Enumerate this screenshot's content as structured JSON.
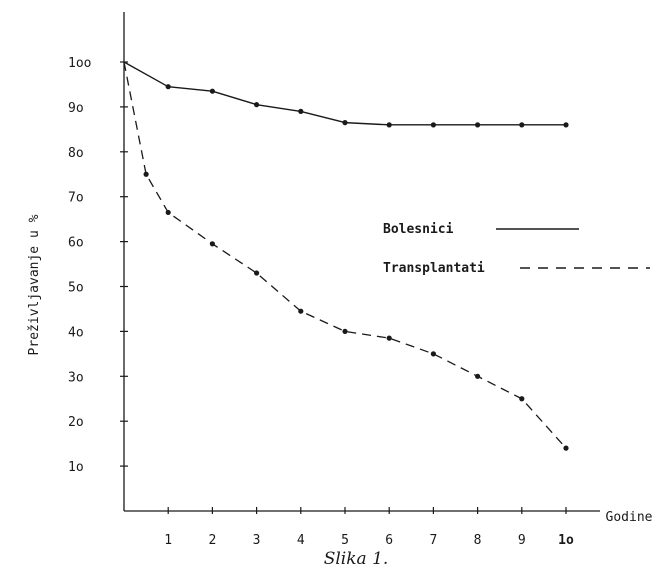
{
  "chart_data": {
    "type": "line",
    "caption": "Slika 1.",
    "xlabel": "Godine",
    "ylabel": "Preživljavanje u %",
    "x_ticks": [
      "1",
      "2",
      "3",
      "4",
      "5",
      "6",
      "7",
      "8",
      "9",
      "1o"
    ],
    "y_ticks": [
      "1o",
      "2o",
      "3o",
      "4o",
      "5o",
      "6o",
      "7o",
      "8o",
      "9o",
      "1oo"
    ],
    "xlim": [
      0,
      10.5
    ],
    "ylim": [
      0,
      106
    ],
    "grid": false,
    "legend_position": "right",
    "series": [
      {
        "name": "Bolesnici",
        "style": "solid",
        "color": "#1a1a1a",
        "points": [
          [
            0,
            100
          ],
          [
            1,
            94.5
          ],
          [
            2,
            93.5
          ],
          [
            3,
            90.5
          ],
          [
            4,
            89
          ],
          [
            5,
            86.5
          ],
          [
            6,
            86
          ],
          [
            7,
            86
          ],
          [
            8,
            86
          ],
          [
            9,
            86
          ],
          [
            10,
            86
          ]
        ]
      },
      {
        "name": "Transplantati",
        "style": "dashed",
        "color": "#1a1a1a",
        "points": [
          [
            0,
            100
          ],
          [
            0.5,
            75
          ],
          [
            1,
            66.5
          ],
          [
            2,
            59.5
          ],
          [
            3,
            53
          ],
          [
            4,
            44.5
          ],
          [
            5,
            40
          ],
          [
            6,
            38.5
          ],
          [
            7,
            35
          ],
          [
            8,
            30
          ],
          [
            9,
            25
          ],
          [
            10,
            14
          ]
        ]
      }
    ]
  }
}
